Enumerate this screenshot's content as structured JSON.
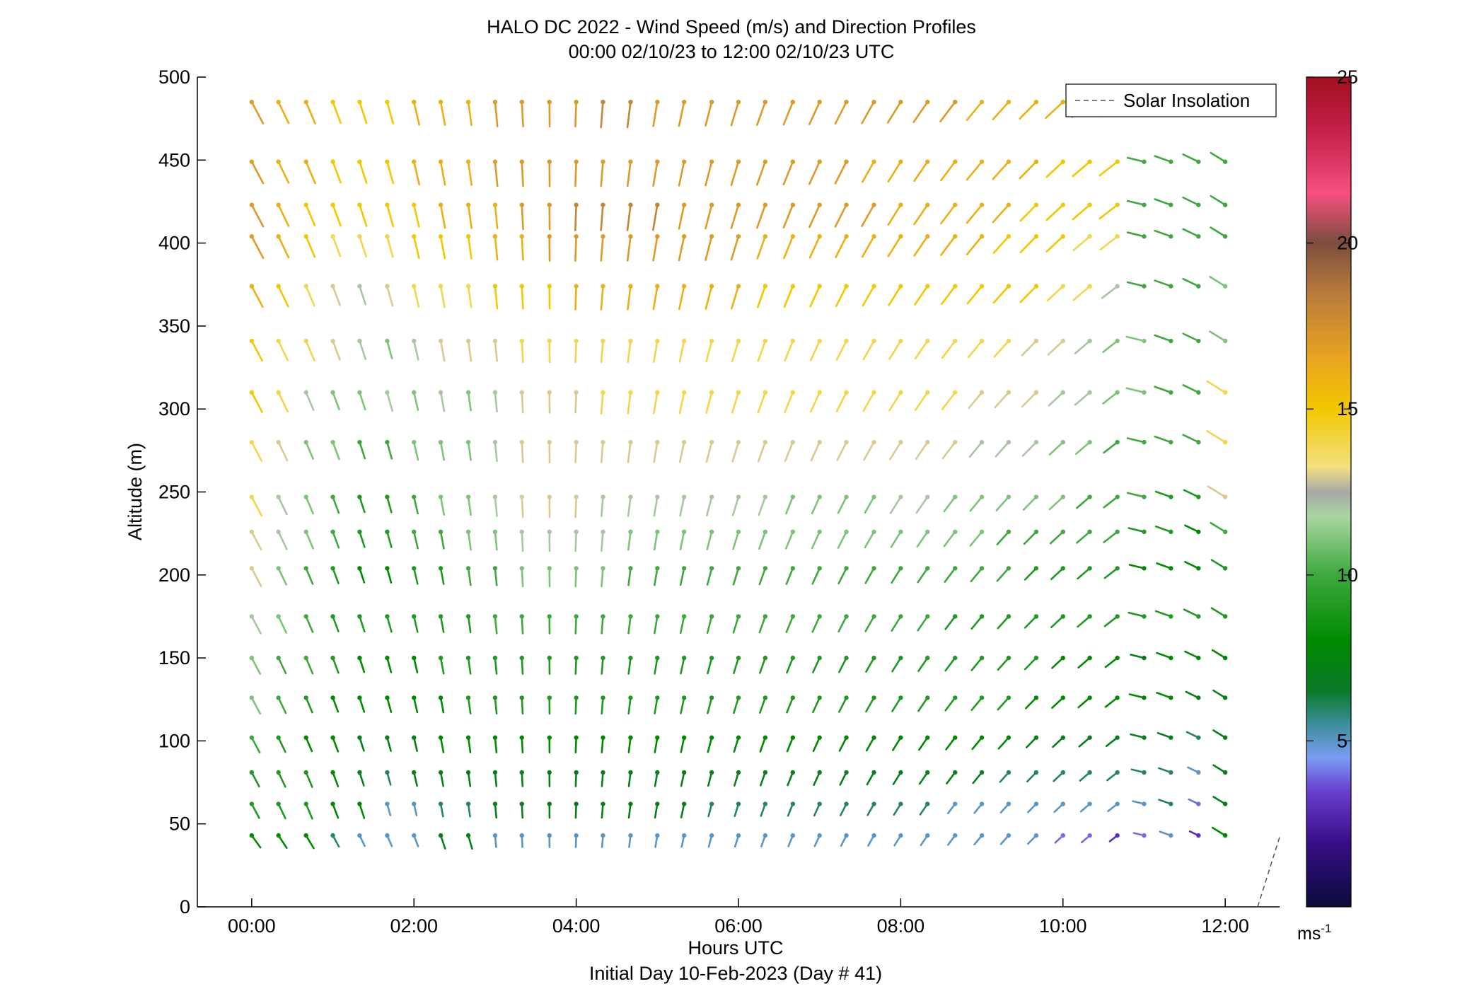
{
  "chart_data": {
    "type": "vector-field",
    "title": "HALO DC 2022 - Wind Speed (m/s) and Direction Profiles",
    "subtitle": "00:00 02/10/23 to 12:00 02/10/23  UTC",
    "xlabel": "Hours UTC",
    "xlabel2": "Initial Day 10-Feb-2023 (Day # 41)",
    "ylabel": "Altitude (m)",
    "x_ticks": [
      "00:00",
      "02:00",
      "04:00",
      "06:00",
      "08:00",
      "10:00",
      "12:00"
    ],
    "x_tick_values": [
      0,
      2,
      4,
      6,
      8,
      10,
      12
    ],
    "y_ticks": [
      "0",
      "50",
      "100",
      "150",
      "200",
      "250",
      "300",
      "350",
      "400",
      "450",
      "500"
    ],
    "y_tick_values": [
      0,
      50,
      100,
      150,
      200,
      250,
      300,
      350,
      400,
      450,
      500
    ],
    "xlim": [
      -0.67,
      12.67
    ],
    "ylim": [
      0,
      500
    ],
    "legend": {
      "label": "Solar Insolation",
      "placement": "top-right"
    },
    "solar_insolation": [
      [
        12.4,
        0
      ],
      [
        12.67,
        42
      ]
    ],
    "colorbar": {
      "label": "ms-1",
      "range": [
        0,
        25
      ],
      "ticks": [
        "5",
        "10",
        "15",
        "20",
        "25"
      ],
      "tick_values": [
        5,
        10,
        15,
        20,
        25
      ]
    },
    "times_hours": [
      0.0,
      0.33,
      0.67,
      1.0,
      1.33,
      1.67,
      2.0,
      2.33,
      2.67,
      3.0,
      3.33,
      3.67,
      4.0,
      4.33,
      4.67,
      5.0,
      5.33,
      5.67,
      6.0,
      6.33,
      6.67,
      7.0,
      7.33,
      7.67,
      8.0,
      8.33,
      8.67,
      9.0,
      9.33,
      9.67,
      10.0,
      10.33,
      10.67,
      11.0,
      11.33,
      11.67,
      12.0
    ],
    "profiles": [
      {
        "altitude": 43,
        "speed": [
          8,
          8,
          8,
          6,
          5,
          5,
          5,
          7,
          7,
          5,
          5,
          5,
          5,
          5,
          5,
          5,
          5,
          5,
          5,
          5,
          5,
          5,
          5,
          5,
          5,
          5,
          5,
          5,
          5,
          5,
          4,
          4,
          3,
          4,
          5,
          3,
          8
        ]
      },
      {
        "altitude": 62,
        "speed": [
          9,
          9,
          9,
          8,
          8,
          5,
          5,
          6,
          6,
          7,
          7,
          7,
          7,
          7,
          7,
          7,
          7,
          6,
          6,
          6,
          6,
          6,
          6,
          6,
          6,
          6,
          5,
          5,
          5,
          5,
          5,
          5,
          5,
          5,
          6,
          4,
          7
        ]
      },
      {
        "altitude": 81,
        "speed": [
          9,
          9,
          9,
          8,
          7,
          6,
          7,
          7,
          7,
          7,
          7,
          7,
          7,
          7,
          7,
          7,
          7,
          7,
          7,
          7,
          7,
          7,
          7,
          7,
          7,
          7,
          7,
          7,
          6,
          6,
          6,
          6,
          6,
          6,
          6,
          5,
          7
        ]
      },
      {
        "altitude": 102,
        "speed": [
          10,
          9,
          8,
          8,
          7,
          7,
          7,
          8,
          8,
          8,
          8,
          8,
          8,
          8,
          8,
          8,
          8,
          8,
          8,
          8,
          8,
          8,
          8,
          8,
          8,
          8,
          8,
          8,
          8,
          7,
          7,
          7,
          7,
          7,
          7,
          6,
          7
        ]
      },
      {
        "altitude": 126,
        "speed": [
          11,
          10,
          9,
          8,
          8,
          8,
          8,
          8,
          9,
          9,
          9,
          9,
          9,
          9,
          9,
          9,
          9,
          9,
          9,
          9,
          9,
          9,
          9,
          9,
          9,
          9,
          9,
          9,
          9,
          8,
          8,
          8,
          8,
          8,
          8,
          7,
          7
        ]
      },
      {
        "altitude": 150,
        "speed": [
          11,
          10,
          10,
          9,
          8,
          8,
          8,
          9,
          9,
          9,
          9,
          9,
          9,
          9,
          9,
          9,
          9,
          9,
          9,
          9,
          9,
          9,
          9,
          9,
          9,
          9,
          9,
          9,
          9,
          9,
          8,
          8,
          8,
          7,
          8,
          8,
          8
        ]
      },
      {
        "altitude": 175,
        "speed": [
          12,
          11,
          10,
          9,
          9,
          9,
          9,
          9,
          9,
          10,
          10,
          10,
          10,
          10,
          10,
          10,
          10,
          10,
          10,
          10,
          10,
          10,
          10,
          10,
          10,
          10,
          9,
          9,
          9,
          9,
          9,
          9,
          9,
          9,
          9,
          9,
          9
        ]
      },
      {
        "altitude": 204,
        "speed": [
          13,
          11,
          10,
          9,
          8,
          8,
          9,
          9,
          10,
          10,
          11,
          11,
          11,
          11,
          10,
          10,
          10,
          10,
          10,
          10,
          10,
          10,
          10,
          10,
          10,
          10,
          10,
          10,
          10,
          9,
          9,
          9,
          9,
          8,
          8,
          8,
          9
        ]
      },
      {
        "altitude": 226,
        "speed": [
          13,
          12,
          11,
          10,
          9,
          9,
          10,
          10,
          11,
          11,
          12,
          12,
          12,
          12,
          11,
          11,
          11,
          11,
          11,
          11,
          11,
          11,
          11,
          11,
          11,
          11,
          11,
          11,
          10,
          10,
          10,
          10,
          10,
          9,
          9,
          8,
          10
        ]
      },
      {
        "altitude": 247,
        "speed": [
          14,
          12,
          11,
          10,
          9,
          9,
          10,
          11,
          11,
          12,
          13,
          13,
          13,
          12,
          12,
          12,
          12,
          12,
          12,
          12,
          11,
          11,
          11,
          11,
          12,
          12,
          11,
          11,
          11,
          11,
          11,
          10,
          10,
          10,
          9,
          9,
          13
        ]
      },
      {
        "altitude": 280,
        "speed": [
          14,
          13,
          11,
          11,
          10,
          10,
          11,
          11,
          11,
          12,
          13,
          13,
          13,
          13,
          13,
          13,
          13,
          13,
          13,
          13,
          13,
          13,
          13,
          13,
          13,
          13,
          13,
          12,
          12,
          12,
          11,
          11,
          10,
          10,
          10,
          10,
          14
        ]
      },
      {
        "altitude": 310,
        "speed": [
          15,
          14,
          12,
          11,
          11,
          12,
          11,
          12,
          11,
          12,
          13,
          13,
          13,
          14,
          14,
          14,
          14,
          14,
          14,
          14,
          14,
          14,
          14,
          14,
          14,
          14,
          14,
          13,
          13,
          13,
          12,
          12,
          11,
          11,
          10,
          10,
          14
        ]
      },
      {
        "altitude": 341,
        "speed": [
          15,
          14,
          14,
          13,
          12,
          11,
          12,
          13,
          13,
          13,
          14,
          14,
          14,
          14,
          14,
          14,
          14,
          14,
          14,
          14,
          14,
          14,
          14,
          14,
          14,
          14,
          14,
          14,
          14,
          13,
          13,
          12,
          11,
          11,
          10,
          10,
          11
        ]
      },
      {
        "altitude": 374,
        "speed": [
          16,
          15,
          14,
          13,
          12,
          13,
          14,
          14,
          14,
          15,
          15,
          15,
          16,
          16,
          16,
          16,
          16,
          16,
          16,
          15,
          15,
          15,
          15,
          15,
          15,
          15,
          15,
          15,
          15,
          15,
          14,
          14,
          12,
          10,
          10,
          10,
          11
        ]
      },
      {
        "altitude": 404,
        "speed": [
          17,
          16,
          15,
          14,
          14,
          14,
          15,
          15,
          15,
          16,
          16,
          17,
          17,
          17,
          17,
          17,
          17,
          17,
          17,
          16,
          16,
          16,
          16,
          16,
          16,
          16,
          16,
          16,
          15,
          15,
          15,
          14,
          14,
          10,
          10,
          10,
          10
        ]
      },
      {
        "altitude": 423,
        "speed": [
          17,
          16,
          15,
          15,
          15,
          15,
          15,
          16,
          16,
          16,
          17,
          17,
          18,
          18,
          18,
          18,
          17,
          17,
          17,
          17,
          17,
          17,
          17,
          17,
          16,
          16,
          16,
          16,
          16,
          15,
          15,
          15,
          15,
          10,
          10,
          10,
          10
        ]
      },
      {
        "altitude": 449,
        "speed": [
          17,
          16,
          16,
          15,
          15,
          15,
          16,
          16,
          16,
          17,
          17,
          17,
          17,
          17,
          17,
          17,
          17,
          17,
          17,
          17,
          17,
          17,
          17,
          16,
          16,
          16,
          16,
          16,
          16,
          16,
          15,
          15,
          15,
          10,
          10,
          10,
          10
        ]
      },
      {
        "altitude": 485,
        "speed": [
          17,
          16,
          16,
          15,
          15,
          15,
          16,
          16,
          16,
          17,
          17,
          17,
          17,
          18,
          18,
          17,
          17,
          17,
          17,
          17,
          17,
          17,
          17,
          17,
          17,
          17,
          17,
          16,
          16,
          16,
          16,
          16,
          16,
          16,
          16,
          16,
          16
        ]
      }
    ]
  }
}
